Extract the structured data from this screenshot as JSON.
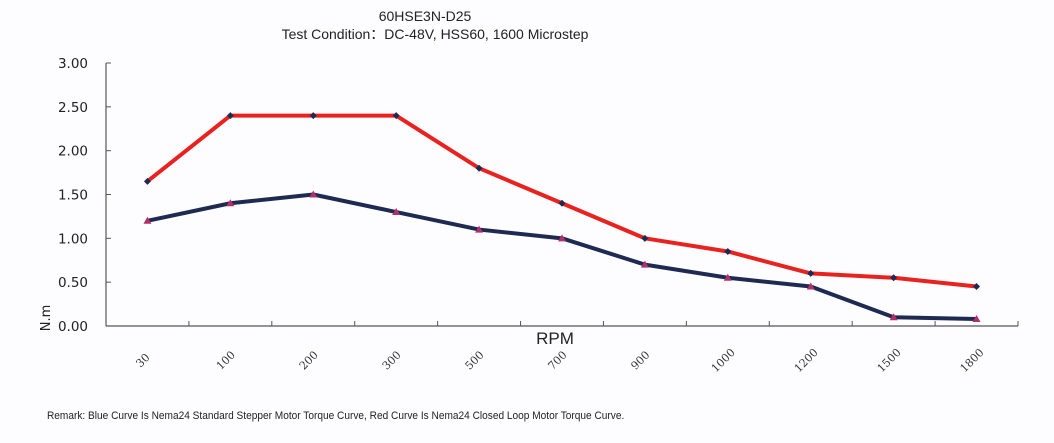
{
  "chart_data": {
    "type": "line",
    "title": "60HSE3N-D25",
    "subtitle": "Test Condition：DC-48V, HSS60, 1600 Microstep",
    "xlabel": "RPM",
    "ylabel": "N.m",
    "categories": [
      "30",
      "100",
      "200",
      "300",
      "500",
      "700",
      "900",
      "1000",
      "1200",
      "1500",
      "1800"
    ],
    "ylim": [
      0,
      3.0
    ],
    "yticks": [
      "0.00",
      "0.50",
      "1.00",
      "1.50",
      "2.00",
      "2.50",
      "3.00"
    ],
    "grid": false,
    "legend": "none",
    "series": [
      {
        "name": "Nema24 Closed Loop Motor Torque",
        "color": "#e8231f",
        "marker": "diamond",
        "marker_color": "#1f2a52",
        "values": [
          1.65,
          2.4,
          2.4,
          2.4,
          1.8,
          1.4,
          1.0,
          0.85,
          0.6,
          0.55,
          0.45
        ]
      },
      {
        "name": "Nema24 Standard Stepper Motor Torque",
        "color": "#1f2a52",
        "marker": "triangle",
        "marker_color": "#b0306a",
        "values": [
          1.2,
          1.4,
          1.5,
          1.3,
          1.1,
          1.0,
          0.7,
          0.55,
          0.45,
          0.1,
          0.08
        ]
      }
    ],
    "annotations": [
      "Remark: Blue Curve Is Nema24 Standard Stepper Motor Torque Curve, Red Curve Is Nema24 Closed Loop Motor Torque Curve."
    ]
  },
  "remark": "Remark: Blue Curve Is Nema24 Standard Stepper Motor Torque Curve, Red Curve Is Nema24 Closed Loop Motor Torque Curve."
}
